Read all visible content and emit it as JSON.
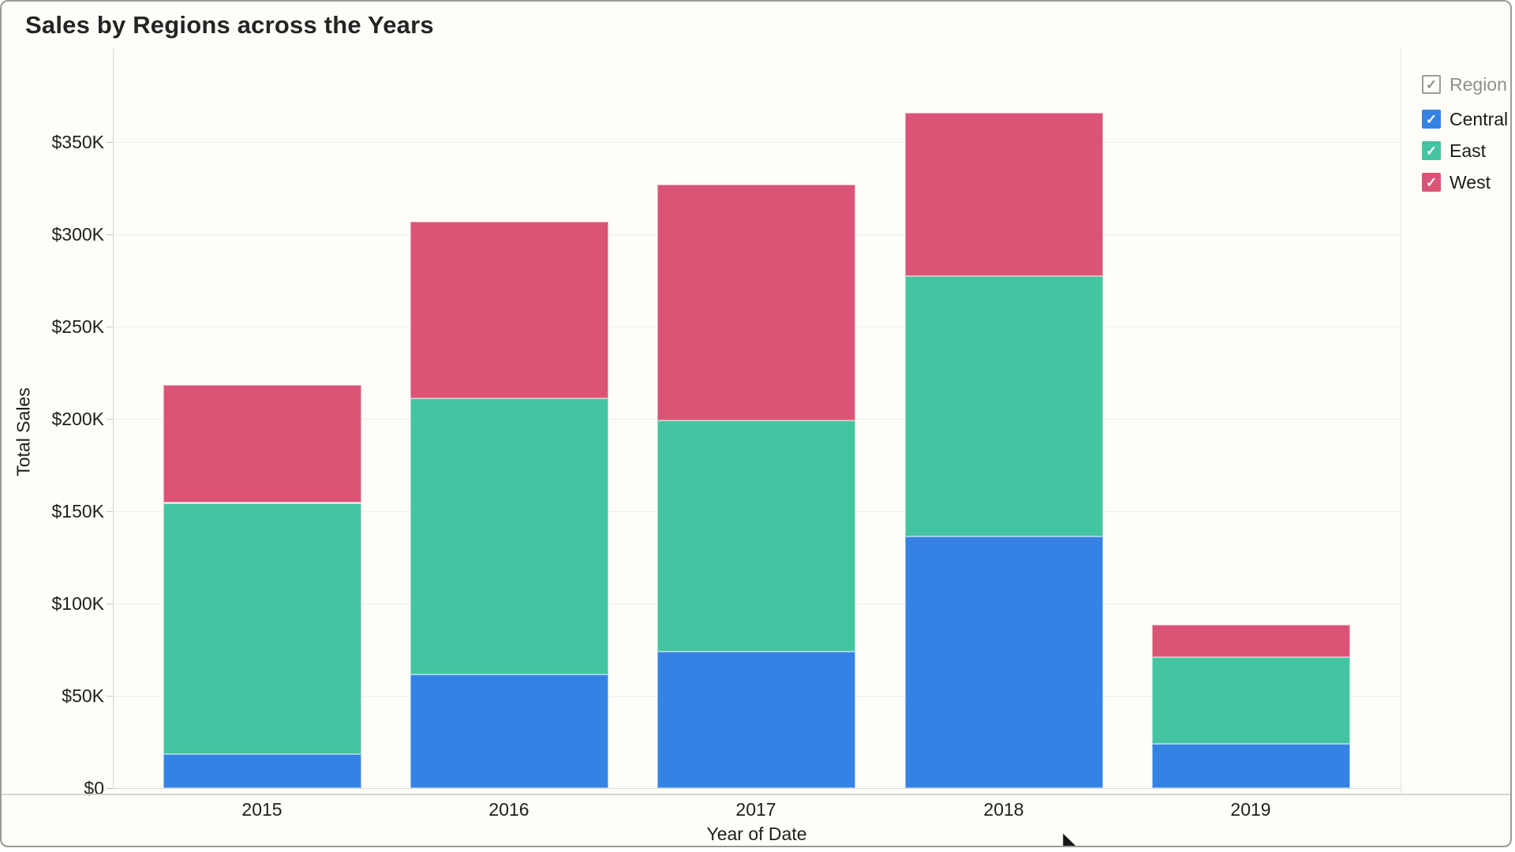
{
  "header": {
    "title": "Sales by Regions across the Years"
  },
  "axes": {
    "y_title": "Total Sales",
    "x_title": "Year of Date"
  },
  "legend": {
    "header_label": "Region",
    "header_checked": true,
    "checkmark": "✓"
  },
  "chart_data": {
    "type": "bar",
    "subtype": "stacked-vertical",
    "title": "Sales by Regions across the Years",
    "xlabel": "Year of Date",
    "ylabel": "Total Sales",
    "units": "USD, K = thousands",
    "categories": [
      "2015",
      "2016",
      "2017",
      "2018",
      "2019"
    ],
    "series": [
      {
        "name": "Central",
        "color": "#3483E4",
        "values_k": [
          18.5,
          61.5,
          74,
          136.5,
          24
        ]
      },
      {
        "name": "East",
        "color": "#44C4A1",
        "values_k": [
          136,
          149.5,
          125,
          141,
          47
        ]
      },
      {
        "name": "West",
        "color": "#DB5476",
        "values_k": [
          64,
          96,
          128,
          88.5,
          17.5
        ]
      }
    ],
    "stack_totals_k": [
      218.5,
      307,
      327,
      366,
      88.5
    ],
    "y_ticks": [
      {
        "label": "$0",
        "value_k": 0
      },
      {
        "label": "$50K",
        "value_k": 50
      },
      {
        "label": "$100K",
        "value_k": 100
      },
      {
        "label": "$150K",
        "value_k": 150
      },
      {
        "label": "$200K",
        "value_k": 200
      },
      {
        "label": "$250K",
        "value_k": 250
      },
      {
        "label": "$300K",
        "value_k": 300
      },
      {
        "label": "$350K",
        "value_k": 350
      }
    ],
    "ylim_k": [
      0,
      400
    ],
    "grid": "horizontal",
    "legend_position": "top-right",
    "legend_title": "Region"
  }
}
